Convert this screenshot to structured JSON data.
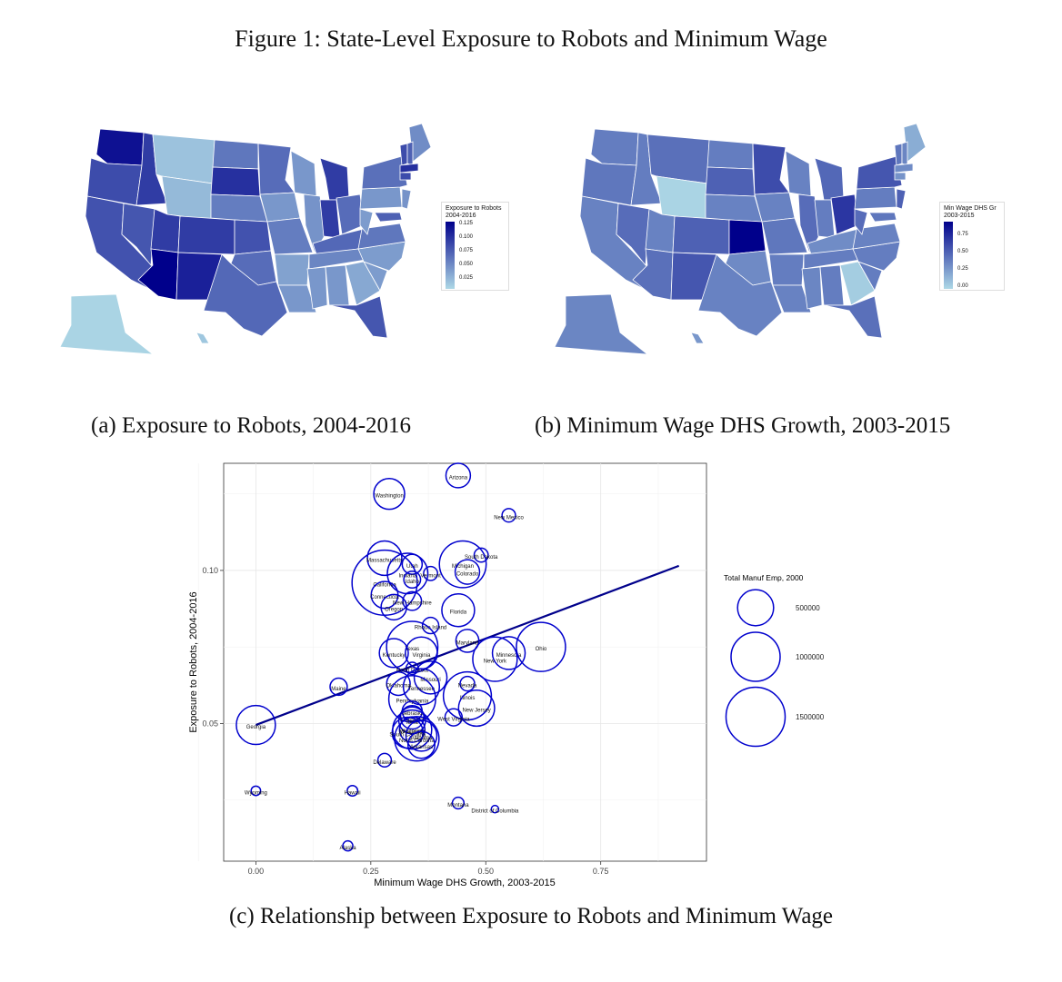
{
  "figure_title": "Figure 1: State-Level Exposure to Robots and Minimum Wage",
  "captions": {
    "a": "(a) Exposure to Robots, 2004-2016",
    "b": "(b) Minimum Wage DHS Growth, 2003-2015",
    "c": "(c) Relationship between Exposure to Robots and Minimum Wage"
  },
  "colors": {
    "low": "#add8e6",
    "high": "#00008b",
    "circle": "#0000cd",
    "fit_line": "#00008b"
  },
  "chart_data": [
    {
      "type": "heatmap",
      "subtype": "choropleth-map",
      "region": "United States",
      "legend": {
        "title_line1": "Exposure to Robots",
        "title_line2": "2004-2016",
        "ticks": [
          "0.125",
          "0.100",
          "0.075",
          "0.050",
          "0.025"
        ],
        "range": [
          0.02,
          0.13
        ],
        "placement": "right"
      }
    },
    {
      "type": "heatmap",
      "subtype": "choropleth-map",
      "region": "United States",
      "legend": {
        "title_line1": "Min Wage DHS Gr",
        "title_line2": "2003-2015",
        "ticks": [
          "0.75",
          "0.50",
          "0.25",
          "0.00"
        ],
        "range": [
          0.0,
          0.92
        ],
        "placement": "right"
      }
    },
    {
      "type": "scatter",
      "xlabel": "Minimum Wage DHS Growth, 2003-2015",
      "ylabel": "Exposure to Robots, 2004-2016",
      "xlim": [
        -0.07,
        0.98
      ],
      "ylim": [
        0.005,
        0.135
      ],
      "xticks": [
        "0.00",
        "0.25",
        "0.50",
        "0.75"
      ],
      "xtick_values": [
        0,
        0.25,
        0.5,
        0.75
      ],
      "yticks": [
        "0.05",
        "0.10"
      ],
      "ytick_values": [
        0.05,
        0.1
      ],
      "grid": true,
      "size_legend": {
        "title": "Total Manuf Emp, 2000",
        "entries": [
          {
            "label": "500000",
            "value": 500000
          },
          {
            "label": "1000000",
            "value": 1000000
          },
          {
            "label": "1500000",
            "value": 1500000
          }
        ],
        "placement": "right"
      },
      "fit_line": {
        "x": [
          0.0,
          0.92
        ],
        "y": [
          0.0495,
          0.1015
        ]
      },
      "points": [
        {
          "label": "Arizona",
          "x": 0.44,
          "y": 0.131,
          "size": 200000
        },
        {
          "label": "Washington",
          "x": 0.29,
          "y": 0.125,
          "size": 350000
        },
        {
          "label": "New Mexico",
          "x": 0.55,
          "y": 0.118,
          "size": 40000
        },
        {
          "label": "Massachusetts",
          "x": 0.28,
          "y": 0.104,
          "size": 450000
        },
        {
          "label": "South Dakota",
          "x": 0.49,
          "y": 0.105,
          "size": 45000
        },
        {
          "label": "Michigan",
          "x": 0.45,
          "y": 0.102,
          "size": 900000
        },
        {
          "label": "Utah",
          "x": 0.34,
          "y": 0.102,
          "size": 120000
        },
        {
          "label": "Vermont",
          "x": 0.38,
          "y": 0.099,
          "size": 45000
        },
        {
          "label": "Indiana",
          "x": 0.33,
          "y": 0.099,
          "size": 650000
        },
        {
          "label": "Colorado",
          "x": 0.46,
          "y": 0.0995,
          "size": 200000
        },
        {
          "label": "California",
          "x": 0.28,
          "y": 0.096,
          "size": 1850000
        },
        {
          "label": "Idaho",
          "x": 0.34,
          "y": 0.097,
          "size": 75000
        },
        {
          "label": "Connecticut",
          "x": 0.28,
          "y": 0.092,
          "size": 250000
        },
        {
          "label": "New Hampshire",
          "x": 0.34,
          "y": 0.09,
          "size": 100000
        },
        {
          "label": "Oregon",
          "x": 0.3,
          "y": 0.088,
          "size": 220000
        },
        {
          "label": "Florida",
          "x": 0.44,
          "y": 0.087,
          "size": 400000
        },
        {
          "label": "Rhode Island",
          "x": 0.38,
          "y": 0.082,
          "size": 70000
        },
        {
          "label": "Texas",
          "x": 0.34,
          "y": 0.075,
          "size": 1100000
        },
        {
          "label": "Maryland",
          "x": 0.46,
          "y": 0.077,
          "size": 170000
        },
        {
          "label": "Minnesota",
          "x": 0.55,
          "y": 0.073,
          "size": 400000
        },
        {
          "label": "Ohio",
          "x": 0.62,
          "y": 0.075,
          "size": 1000000
        },
        {
          "label": "Kentucky",
          "x": 0.3,
          "y": 0.073,
          "size": 300000
        },
        {
          "label": "Virginia",
          "x": 0.36,
          "y": 0.073,
          "size": 380000
        },
        {
          "label": "New York",
          "x": 0.52,
          "y": 0.071,
          "size": 800000
        },
        {
          "label": "North Dakota",
          "x": 0.34,
          "y": 0.068,
          "size": 30000
        },
        {
          "label": "Missouri",
          "x": 0.38,
          "y": 0.065,
          "size": 400000
        },
        {
          "label": "Maine",
          "x": 0.18,
          "y": 0.062,
          "size": 80000
        },
        {
          "label": "Oklahoma",
          "x": 0.31,
          "y": 0.063,
          "size": 180000
        },
        {
          "label": "Tennessee",
          "x": 0.36,
          "y": 0.062,
          "size": 500000
        },
        {
          "label": "Nevada",
          "x": 0.46,
          "y": 0.063,
          "size": 50000
        },
        {
          "label": "Pennsylvania",
          "x": 0.34,
          "y": 0.058,
          "size": 900000
        },
        {
          "label": "Illinois",
          "x": 0.46,
          "y": 0.059,
          "size": 950000
        },
        {
          "label": "Nebraska",
          "x": 0.34,
          "y": 0.054,
          "size": 120000
        },
        {
          "label": "New Jersey",
          "x": 0.48,
          "y": 0.055,
          "size": 500000
        },
        {
          "label": "Louisiana",
          "x": 0.34,
          "y": 0.052,
          "size": 180000
        },
        {
          "label": "Iowa",
          "x": 0.34,
          "y": 0.051,
          "size": 250000
        },
        {
          "label": "West Virginia",
          "x": 0.43,
          "y": 0.052,
          "size": 80000
        },
        {
          "label": "Georgia",
          "x": 0.0,
          "y": 0.0495,
          "size": 600000
        },
        {
          "label": "Wisconsin",
          "x": 0.34,
          "y": 0.048,
          "size": 600000
        },
        {
          "label": "Mississippi",
          "x": 0.34,
          "y": 0.048,
          "size": 220000
        },
        {
          "label": "Alabama",
          "x": 0.36,
          "y": 0.046,
          "size": 350000
        },
        {
          "label": "South Carolina",
          "x": 0.33,
          "y": 0.047,
          "size": 350000
        },
        {
          "label": "North Carolina",
          "x": 0.35,
          "y": 0.045,
          "size": 800000
        },
        {
          "label": "Arkansas",
          "x": 0.36,
          "y": 0.043,
          "size": 250000
        },
        {
          "label": "Delaware",
          "x": 0.28,
          "y": 0.038,
          "size": 40000
        },
        {
          "label": "Wyoming",
          "x": 0.0,
          "y": 0.028,
          "size": 12000
        },
        {
          "label": "Hawaii",
          "x": 0.21,
          "y": 0.028,
          "size": 18000
        },
        {
          "label": "Montana",
          "x": 0.44,
          "y": 0.024,
          "size": 25000
        },
        {
          "label": "District of Columbia",
          "x": 0.52,
          "y": 0.022,
          "size": 4000
        },
        {
          "label": "Alaska",
          "x": 0.2,
          "y": 0.01,
          "size": 15000
        }
      ]
    }
  ]
}
